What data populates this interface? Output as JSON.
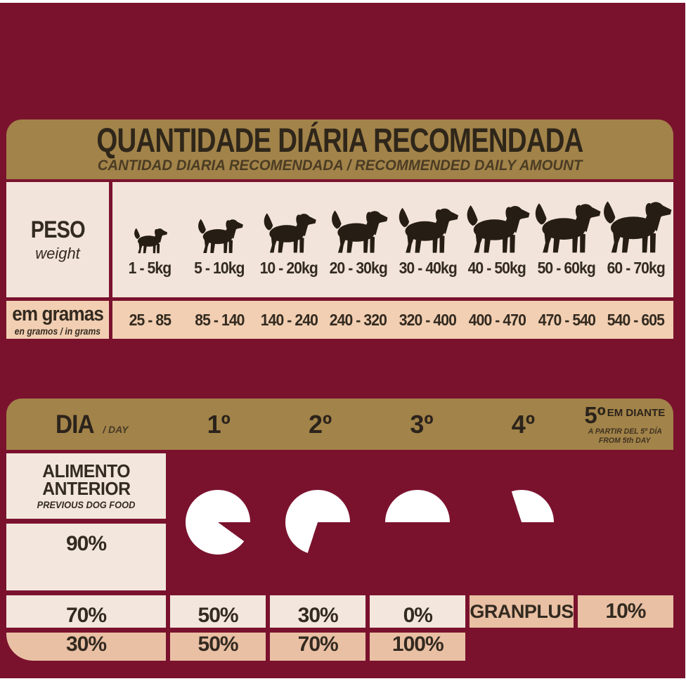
{
  "header": {
    "title": "QUANTIDADE DIÁRIA RECOMENDADA",
    "subtitle": "CANTIDAD DIARIA RECOMENDADA / RECOMMENDED DAILY AMOUNT"
  },
  "weight_table": {
    "peso_label": "PESO",
    "peso_sub": "weight",
    "grams_label": "em gramas",
    "grams_sub": "en gramos / in grams",
    "columns": [
      {
        "weight": "1 - 5kg",
        "grams": "25 - 85",
        "dog_scale": 0.49
      },
      {
        "weight": "5 - 10kg",
        "grams": "85 - 140",
        "dog_scale": 0.66
      },
      {
        "weight": "10 - 20kg",
        "grams": "140 - 240",
        "dog_scale": 0.77
      },
      {
        "weight": "20 - 30kg",
        "grams": "240 - 320",
        "dog_scale": 0.83
      },
      {
        "weight": "30 - 40kg",
        "grams": "320 - 400",
        "dog_scale": 0.88
      },
      {
        "weight": "40 - 50kg",
        "grams": "400 - 470",
        "dog_scale": 0.92
      },
      {
        "weight": "50 - 60kg",
        "grams": "470 - 540",
        "dog_scale": 0.96
      },
      {
        "weight": "60 - 70kg",
        "grams": "540 - 605",
        "dog_scale": 1.0
      }
    ]
  },
  "day_table": {
    "dia_label": "DIA",
    "dia_sub": "/ DAY",
    "days": [
      "1º",
      "2º",
      "3º",
      "4º"
    ],
    "day5": {
      "num": "5º",
      "label": "EM DIANTE",
      "sub1": "A PARTIR DEL 5º DÍA",
      "sub2": "FROM 5th DAY"
    },
    "previous_label1": "ALIMENTO",
    "previous_label2": "ANTERIOR",
    "previous_sub": "PREVIOUS DOG FOOD",
    "brand_label": "GRANPLUS",
    "columns": [
      {
        "previous": "90%",
        "granplus": "10%",
        "granplus_value": 10
      },
      {
        "previous": "70%",
        "granplus": "30%",
        "granplus_value": 30
      },
      {
        "previous": "50%",
        "granplus": "50%",
        "granplus_value": 50
      },
      {
        "previous": "30%",
        "granplus": "70%",
        "granplus_value": 70
      },
      {
        "previous": "0%",
        "granplus": "100%",
        "granplus_value": 100
      }
    ]
  },
  "colors": {
    "maroon": "#7a122e",
    "gold": "#a28349",
    "cream": "#f2e4da",
    "peach": "#f2cfb2",
    "tan": "#e9c0a4",
    "ink": "#332a20",
    "pie_white": "#ffffff"
  },
  "icons": {
    "dog": "dog-silhouette-icon"
  },
  "chart_data": [
    {
      "type": "table",
      "title": "QUANTIDADE DIÁRIA RECOMENDADA",
      "subtitle": "CANTIDAD DIARIA RECOMENDADA / RECOMMENDED DAILY AMOUNT",
      "columns": [
        "1 - 5kg",
        "5 - 10kg",
        "10 - 20kg",
        "20 - 30kg",
        "30 - 40kg",
        "40 - 50kg",
        "50 - 60kg",
        "60 - 70kg"
      ],
      "rows": [
        {
          "label": "em gramas (en gramos / in grams)",
          "values": [
            "25 - 85",
            "85 - 140",
            "140 - 240",
            "240 - 320",
            "320 - 400",
            "400 - 470",
            "470 - 540",
            "540 - 605"
          ]
        }
      ]
    },
    {
      "type": "pie",
      "xlabel": "DIA / DAY",
      "categories": [
        "1º",
        "2º",
        "3º",
        "4º",
        "5º em diante"
      ],
      "series": [
        {
          "name": "ALIMENTO ANTERIOR / PREVIOUS DOG FOOD",
          "values": [
            90,
            70,
            50,
            30,
            0
          ]
        },
        {
          "name": "GRANPLUS",
          "values": [
            10,
            30,
            50,
            70,
            100
          ]
        }
      ],
      "unit": "%"
    }
  ]
}
